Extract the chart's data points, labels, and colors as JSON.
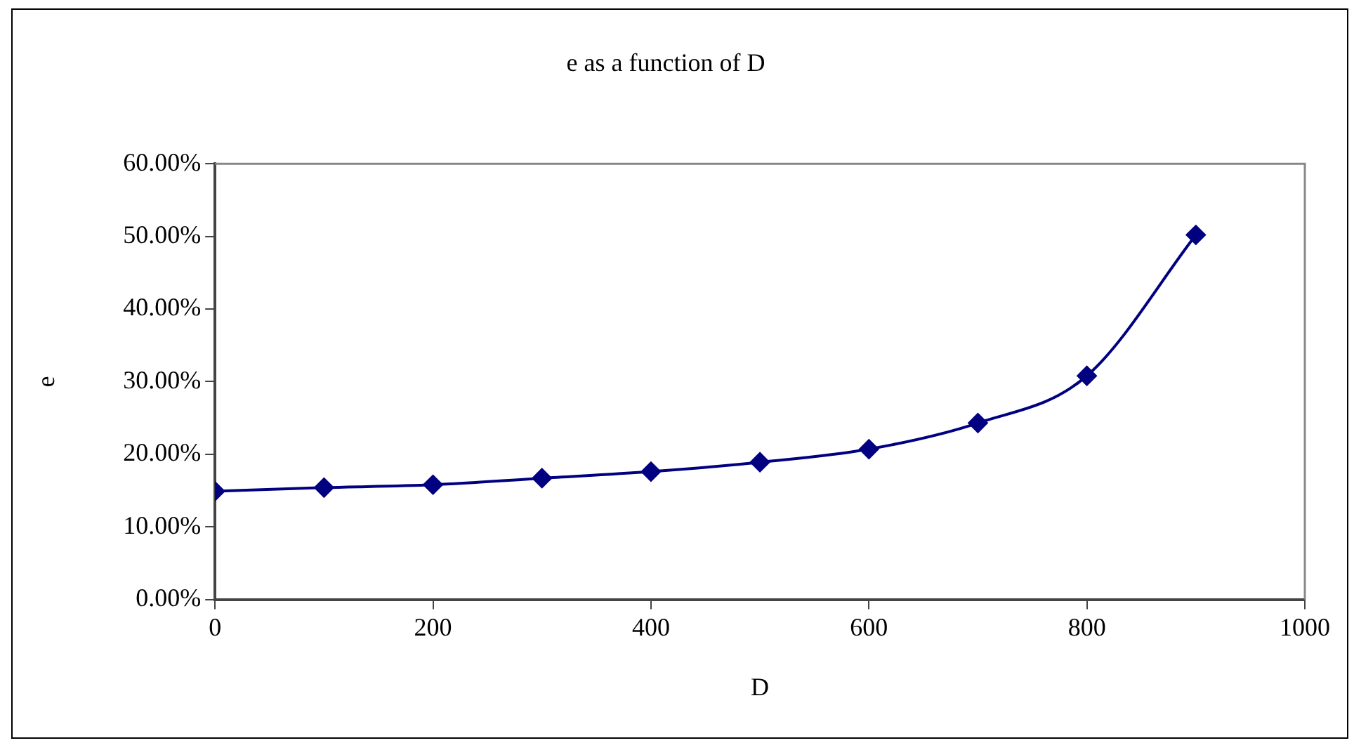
{
  "chart_data": {
    "type": "line",
    "title": "e as a function of D",
    "xlabel": "D",
    "ylabel": "e",
    "x": [
      0,
      100,
      200,
      300,
      400,
      500,
      600,
      700,
      800,
      900
    ],
    "series": [
      {
        "color": "#000080",
        "values": [
          14.9,
          15.4,
          15.8,
          16.7,
          17.6,
          18.9,
          20.7,
          24.3,
          30.8,
          50.2
        ]
      }
    ],
    "xlim": [
      0,
      1000
    ],
    "xticks": [
      0,
      200,
      400,
      600,
      800,
      1000
    ],
    "ylim": [
      0,
      60
    ],
    "yticks": [
      {
        "value": 0,
        "label": "0.00%"
      },
      {
        "value": 10,
        "label": "10.00%"
      },
      {
        "value": 20,
        "label": "20.00%"
      },
      {
        "value": 30,
        "label": "30.00%"
      },
      {
        "value": 40,
        "label": "40.00%"
      },
      {
        "value": 50,
        "label": "50.00%"
      },
      {
        "value": 60,
        "label": "60.00%"
      }
    ],
    "grid": false,
    "legend": false,
    "marker": "diamond",
    "line_style": "solid"
  }
}
